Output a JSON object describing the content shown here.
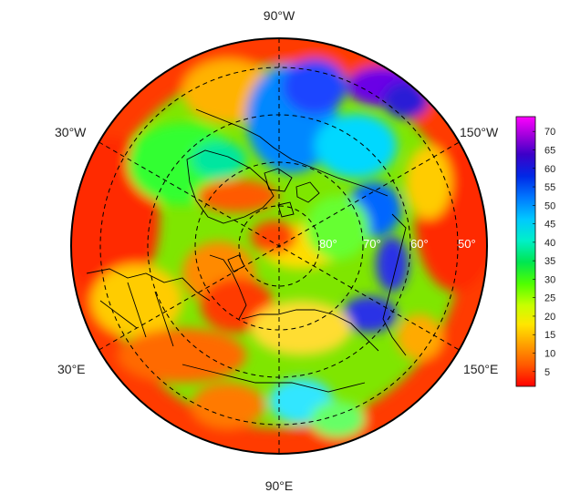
{
  "map": {
    "projection": "north-polar-stereographic",
    "longitude_labels": {
      "top": "90°W",
      "bottom": "90°E",
      "upper_left": "30°W",
      "lower_left": "30°E",
      "upper_right": "150°W",
      "lower_right": "150°E"
    },
    "latitude_labels": [
      "80°",
      "70°",
      "60°",
      "50°"
    ],
    "latitude_circles_deg": [
      80,
      70,
      60,
      50
    ],
    "meridian_lines": "dashed",
    "coastlines": true
  },
  "colorbar": {
    "ticks": [
      "5",
      "10",
      "15",
      "20",
      "25",
      "30",
      "35",
      "40",
      "45",
      "50",
      "55",
      "60",
      "65",
      "70"
    ],
    "min": 1,
    "max": 74,
    "colors": [
      "#ff0000",
      "#ff5a00",
      "#ffa500",
      "#ffe600",
      "#c8ff00",
      "#50ff00",
      "#00e650",
      "#00f0c8",
      "#00c8ff",
      "#0078ff",
      "#0028e6",
      "#3c00c8",
      "#a000dc",
      "#ff00ff"
    ]
  }
}
